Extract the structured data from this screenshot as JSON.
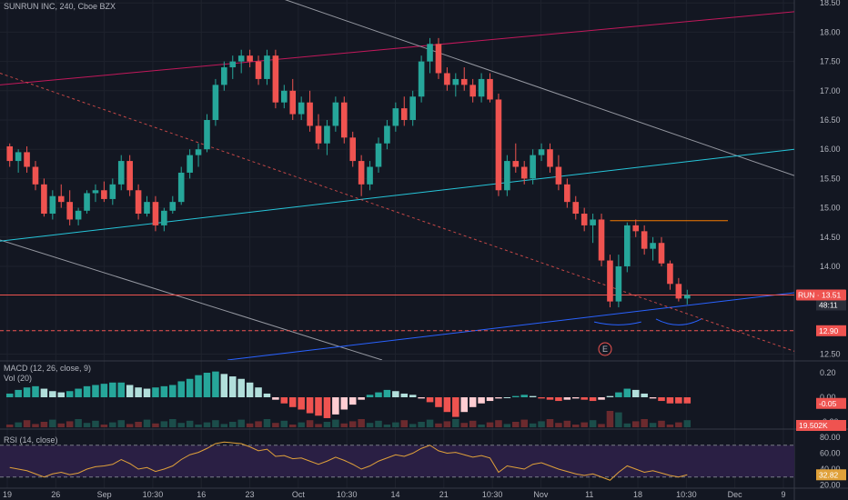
{
  "title": "SUNRUN INC, 240, Cboe BZX",
  "colors": {
    "background": "#131722",
    "grid": "#1e222d",
    "up": "#26a69a",
    "down": "#ef5350",
    "text": "#b2b5be",
    "trend_white": "#9598a1",
    "trend_red": "#c2185b",
    "trend_teal": "#26c6da",
    "trend_blue": "#2962ff",
    "rsi_line": "#e0a13a",
    "rsi_band": "#2a1f44"
  },
  "price_axis": {
    "ticks": [
      "18.50",
      "18.00",
      "17.50",
      "17.00",
      "16.50",
      "16.00",
      "15.50",
      "15.00",
      "14.50",
      "14.00",
      "12.90",
      "12.50"
    ],
    "tick_values": [
      18.5,
      18.0,
      17.5,
      17.0,
      16.5,
      16.0,
      15.5,
      15.0,
      14.5,
      14.0,
      12.9,
      12.5
    ],
    "range": [
      12.4,
      18.55
    ],
    "last_price_tag": "RUN · 13.51",
    "last_price": 13.51,
    "countdown_tag": "48:11",
    "support_tag": "12.90",
    "support_value": 12.9,
    "earnings_marker": "E"
  },
  "time_axis": {
    "labels": [
      "19",
      "26",
      "Sep",
      "10:30",
      "16",
      "23",
      "Oct",
      "10:30",
      "14",
      "21",
      "10:30",
      "Nov",
      "11",
      "18",
      "10:30",
      "Dec",
      "9"
    ]
  },
  "macd": {
    "label": "MACD (12, 26, close, 9)",
    "ticks": [
      "0.20",
      "0.00",
      "-0.20"
    ],
    "tick_values": [
      0.2,
      0.0,
      -0.2
    ],
    "current_tag": "-0.05",
    "current_value": -0.05
  },
  "volume": {
    "label": "Vol (20)",
    "current_tag": "19.502K"
  },
  "rsi": {
    "label": "RSI (14, close)",
    "ticks": [
      "80.00",
      "60.00",
      "40.00",
      "20.00"
    ],
    "tick_values": [
      80,
      60,
      40,
      20
    ],
    "upper_band": 70,
    "lower_band": 30,
    "current_tag": "32.82",
    "current_value": 32.82
  },
  "chart_data": {
    "type": "candlestick",
    "title": "SUNRUN INC, 240, Cboe BZX",
    "series": [
      {
        "name": "price",
        "candles": [
          [
            16.05,
            16.1,
            15.7,
            15.8
          ],
          [
            15.8,
            16.0,
            15.6,
            15.95
          ],
          [
            15.95,
            16.05,
            15.6,
            15.7
          ],
          [
            15.7,
            15.8,
            15.3,
            15.4
          ],
          [
            15.4,
            15.5,
            14.85,
            14.9
          ],
          [
            14.9,
            15.3,
            14.8,
            15.2
          ],
          [
            15.2,
            15.4,
            15.0,
            15.1
          ],
          [
            15.1,
            15.3,
            14.7,
            14.8
          ],
          [
            14.8,
            15.0,
            14.7,
            14.95
          ],
          [
            14.95,
            15.3,
            14.9,
            15.25
          ],
          [
            15.25,
            15.4,
            15.1,
            15.3
          ],
          [
            15.3,
            15.45,
            15.1,
            15.15
          ],
          [
            15.15,
            15.5,
            15.05,
            15.4
          ],
          [
            15.4,
            15.9,
            15.3,
            15.8
          ],
          [
            15.8,
            15.9,
            15.2,
            15.3
          ],
          [
            15.3,
            15.4,
            14.8,
            14.9
          ],
          [
            14.9,
            15.2,
            14.85,
            15.1
          ],
          [
            15.1,
            15.2,
            14.6,
            14.7
          ],
          [
            14.7,
            15.0,
            14.6,
            14.95
          ],
          [
            14.95,
            15.2,
            14.9,
            15.1
          ],
          [
            15.1,
            15.7,
            15.05,
            15.6
          ],
          [
            15.6,
            16.0,
            15.5,
            15.9
          ],
          [
            15.9,
            16.1,
            15.7,
            16.0
          ],
          [
            16.0,
            16.6,
            15.95,
            16.5
          ],
          [
            16.5,
            17.2,
            16.4,
            17.1
          ],
          [
            17.1,
            17.5,
            17.0,
            17.4
          ],
          [
            17.4,
            17.6,
            17.2,
            17.5
          ],
          [
            17.5,
            17.7,
            17.3,
            17.6
          ],
          [
            17.6,
            17.7,
            17.4,
            17.5
          ],
          [
            17.5,
            17.6,
            17.1,
            17.2
          ],
          [
            17.2,
            17.7,
            17.1,
            17.6
          ],
          [
            17.6,
            17.7,
            16.7,
            16.8
          ],
          [
            16.8,
            17.1,
            16.7,
            17.0
          ],
          [
            17.0,
            17.2,
            16.5,
            16.6
          ],
          [
            16.6,
            16.9,
            16.5,
            16.8
          ],
          [
            16.8,
            17.0,
            16.3,
            16.4
          ],
          [
            16.4,
            16.6,
            16.0,
            16.1
          ],
          [
            16.1,
            16.5,
            15.9,
            16.4
          ],
          [
            16.4,
            16.9,
            16.3,
            16.8
          ],
          [
            16.8,
            16.9,
            16.1,
            16.2
          ],
          [
            16.2,
            16.3,
            15.7,
            15.8
          ],
          [
            15.8,
            15.9,
            15.2,
            15.4
          ],
          [
            15.4,
            15.8,
            15.3,
            15.7
          ],
          [
            15.7,
            16.2,
            15.6,
            16.1
          ],
          [
            16.1,
            16.5,
            16.0,
            16.4
          ],
          [
            16.4,
            16.8,
            16.3,
            16.7
          ],
          [
            16.7,
            16.9,
            16.4,
            16.5
          ],
          [
            16.5,
            17.0,
            16.4,
            16.9
          ],
          [
            16.9,
            17.6,
            16.8,
            17.5
          ],
          [
            17.5,
            17.9,
            17.3,
            17.8
          ],
          [
            17.8,
            17.9,
            17.2,
            17.3
          ],
          [
            17.3,
            17.4,
            17.0,
            17.1
          ],
          [
            17.1,
            17.3,
            16.9,
            17.2
          ],
          [
            17.2,
            17.4,
            17.0,
            17.1
          ],
          [
            17.1,
            17.2,
            16.8,
            16.9
          ],
          [
            16.9,
            17.3,
            16.8,
            17.2
          ],
          [
            17.2,
            17.3,
            16.8,
            16.85
          ],
          [
            16.85,
            16.95,
            15.2,
            15.3
          ],
          [
            15.3,
            15.9,
            15.2,
            15.8
          ],
          [
            15.8,
            16.1,
            15.6,
            15.7
          ],
          [
            15.7,
            15.8,
            15.4,
            15.5
          ],
          [
            15.5,
            16.0,
            15.4,
            15.9
          ],
          [
            15.9,
            16.1,
            15.8,
            16.0
          ],
          [
            16.0,
            16.1,
            15.6,
            15.7
          ],
          [
            15.7,
            15.9,
            15.3,
            15.4
          ],
          [
            15.4,
            15.5,
            15.0,
            15.1
          ],
          [
            15.1,
            15.2,
            14.8,
            14.9
          ],
          [
            14.9,
            15.0,
            14.6,
            14.7
          ],
          [
            14.7,
            14.9,
            14.4,
            14.8
          ],
          [
            14.8,
            14.9,
            14.0,
            14.1
          ],
          [
            14.1,
            14.2,
            13.3,
            13.4
          ],
          [
            13.4,
            14.2,
            13.3,
            14.0
          ],
          [
            14.0,
            14.75,
            13.9,
            14.7
          ],
          [
            14.7,
            14.8,
            14.5,
            14.6
          ],
          [
            14.6,
            14.7,
            14.2,
            14.3
          ],
          [
            14.3,
            14.5,
            14.1,
            14.4
          ],
          [
            14.4,
            14.5,
            14.0,
            14.05
          ],
          [
            14.05,
            14.1,
            13.6,
            13.7
          ],
          [
            13.7,
            13.8,
            13.4,
            13.45
          ],
          [
            13.45,
            13.6,
            13.35,
            13.51
          ]
        ]
      }
    ],
    "ylim": [
      12.4,
      18.55
    ],
    "x_tick_labels": [
      "19",
      "26",
      "Sep",
      "10:30",
      "16",
      "23",
      "Oct",
      "10:30",
      "14",
      "21",
      "10:30",
      "Nov",
      "11",
      "18",
      "10:30",
      "Dec",
      "9"
    ],
    "macd_histogram": [
      0.03,
      0.06,
      0.08,
      0.09,
      0.07,
      0.05,
      0.04,
      0.05,
      0.07,
      0.09,
      0.1,
      0.11,
      0.12,
      0.12,
      0.1,
      0.08,
      0.07,
      0.08,
      0.09,
      0.1,
      0.13,
      0.15,
      0.18,
      0.2,
      0.21,
      0.19,
      0.17,
      0.15,
      0.12,
      0.08,
      0.03,
      -0.02,
      -0.05,
      -0.08,
      -0.1,
      -0.13,
      -0.15,
      -0.17,
      -0.14,
      -0.1,
      -0.06,
      -0.02,
      0.02,
      0.04,
      0.06,
      0.05,
      0.03,
      0.02,
      -0.01,
      -0.04,
      -0.08,
      -0.12,
      -0.16,
      -0.12,
      -0.08,
      -0.05,
      -0.03,
      -0.01,
      0.0,
      0.01,
      0.02,
      0.01,
      -0.01,
      -0.02,
      -0.03,
      -0.02,
      -0.01,
      -0.02,
      -0.03,
      -0.02,
      0.01,
      0.04,
      0.07,
      0.06,
      0.03,
      -0.01,
      -0.03,
      -0.05,
      -0.05,
      -0.05
    ],
    "rsi_values": [
      42,
      40,
      38,
      34,
      30,
      34,
      36,
      33,
      35,
      40,
      43,
      44,
      46,
      52,
      47,
      40,
      42,
      37,
      40,
      44,
      52,
      58,
      61,
      66,
      72,
      74,
      73,
      72,
      68,
      63,
      65,
      56,
      57,
      53,
      54,
      50,
      46,
      50,
      55,
      51,
      46,
      40,
      44,
      50,
      54,
      58,
      56,
      60,
      66,
      70,
      63,
      60,
      61,
      58,
      55,
      57,
      54,
      36,
      44,
      42,
      40,
      46,
      48,
      44,
      40,
      37,
      34,
      32,
      34,
      30,
      26,
      36,
      44,
      40,
      36,
      38,
      35,
      32,
      30,
      32.82
    ]
  }
}
